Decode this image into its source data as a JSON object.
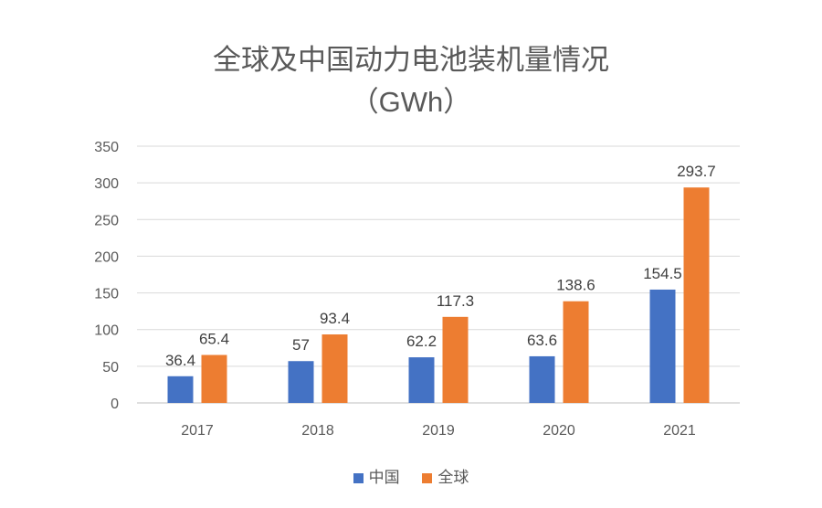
{
  "chart_data": {
    "type": "bar",
    "title": "全球及中国动力电池装机量情况",
    "subtitle": "（GWh）",
    "xlabel": "",
    "ylabel": "",
    "categories": [
      "2017",
      "2018",
      "2019",
      "2020",
      "2021"
    ],
    "series": [
      {
        "name": "中国",
        "color": "#4472C4",
        "values": [
          36.4,
          57,
          62.2,
          63.6,
          154.5
        ]
      },
      {
        "name": "全球",
        "color": "#ED7D31",
        "values": [
          65.4,
          93.4,
          117.3,
          138.6,
          293.7
        ]
      }
    ],
    "ylim": [
      0,
      350
    ],
    "yticks": [
      0,
      50,
      100,
      150,
      200,
      250,
      300,
      350
    ],
    "grid": true,
    "legend_position": "bottom"
  }
}
